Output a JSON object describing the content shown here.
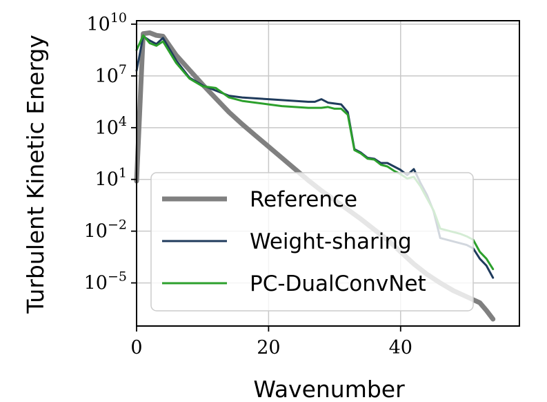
{
  "chart_data": {
    "type": "line",
    "xlabel": "Wavenumber",
    "ylabel": "Turbulent Kinetic Energy",
    "y_scale": "log",
    "xlim": [
      0,
      58
    ],
    "ylim_log10": [
      -7.5,
      10.2
    ],
    "x_ticks": [
      {
        "value": 0,
        "label": "0"
      },
      {
        "value": 20,
        "label": "20"
      },
      {
        "value": 40,
        "label": "40"
      }
    ],
    "y_ticks": [
      {
        "exp": 10,
        "base": "10",
        "sup": "10"
      },
      {
        "exp": 7,
        "base": "10",
        "sup": "7"
      },
      {
        "exp": 4,
        "base": "10",
        "sup": "4"
      },
      {
        "exp": 1,
        "base": "10",
        "sup": "1"
      },
      {
        "exp": -2,
        "base": "10",
        "sup": "−2"
      },
      {
        "exp": -5,
        "base": "10",
        "sup": "−5"
      }
    ],
    "grid": true,
    "legend_position": "bottom-left",
    "series": [
      {
        "name": "Reference",
        "color": "#808080",
        "x": [
          0,
          1,
          2,
          3,
          4,
          6,
          8,
          10,
          12,
          14,
          16,
          18,
          20,
          22,
          24,
          26,
          28,
          30,
          32,
          34,
          36,
          38,
          40,
          42,
          44,
          46,
          48,
          50,
          52,
          53,
          54
        ],
        "log10_y": [
          0.9,
          9.45,
          9.5,
          9.35,
          9.3,
          8.2,
          7.35,
          6.5,
          5.7,
          4.9,
          4.2,
          3.55,
          2.9,
          2.25,
          1.6,
          0.95,
          0.35,
          -0.2,
          -0.75,
          -1.3,
          -1.9,
          -2.5,
          -3.2,
          -3.9,
          -4.5,
          -5.0,
          -5.45,
          -5.8,
          -6.15,
          -6.6,
          -7.1
        ]
      },
      {
        "name": "Weight-sharing",
        "color": "#1f3b5c",
        "x": [
          0,
          1,
          2,
          3,
          4,
          6,
          8,
          10,
          12,
          14,
          16,
          18,
          20,
          22,
          24,
          26,
          27,
          28,
          29,
          30,
          31,
          32,
          33,
          34,
          35,
          36,
          37,
          38,
          39,
          40,
          41,
          42,
          43,
          44,
          45,
          46,
          47,
          48,
          49,
          50,
          51,
          52,
          53,
          54
        ],
        "log10_y": [
          7.3,
          9.3,
          9.05,
          8.85,
          9.2,
          7.9,
          6.9,
          6.45,
          6.15,
          5.85,
          5.75,
          5.7,
          5.65,
          5.6,
          5.55,
          5.5,
          5.5,
          5.65,
          5.45,
          5.4,
          5.35,
          4.9,
          2.75,
          2.55,
          2.25,
          2.2,
          1.95,
          1.95,
          1.75,
          1.55,
          1.25,
          1.6,
          0.8,
          0.1,
          -0.85,
          -2.4,
          -2.5,
          -2.6,
          -2.7,
          -2.8,
          -3.0,
          -3.6,
          -4.0,
          -4.7
        ]
      },
      {
        "name": "PC-DualConvNet",
        "color": "#2ca02c",
        "x": [
          0,
          1,
          2,
          3,
          4,
          6,
          8,
          10,
          12,
          14,
          16,
          18,
          20,
          22,
          24,
          26,
          28,
          29,
          30,
          31,
          32,
          33,
          34,
          35,
          36,
          37,
          38,
          39,
          40,
          41,
          42,
          43,
          44,
          45,
          46,
          47,
          48,
          49,
          50,
          51,
          52,
          53,
          54
        ],
        "log10_y": [
          8.5,
          9.35,
          8.9,
          8.75,
          9.0,
          7.75,
          6.85,
          6.4,
          6.3,
          5.75,
          5.55,
          5.45,
          5.35,
          5.25,
          5.2,
          5.15,
          5.15,
          5.2,
          5.1,
          5.1,
          4.75,
          2.7,
          2.5,
          2.2,
          2.15,
          1.85,
          1.75,
          1.5,
          1.3,
          1.05,
          1.15,
          0.6,
          -0.1,
          -0.8,
          -1.85,
          -1.95,
          -2.05,
          -2.15,
          -2.3,
          -2.5,
          -3.2,
          -3.6,
          -4.2
        ]
      }
    ]
  }
}
